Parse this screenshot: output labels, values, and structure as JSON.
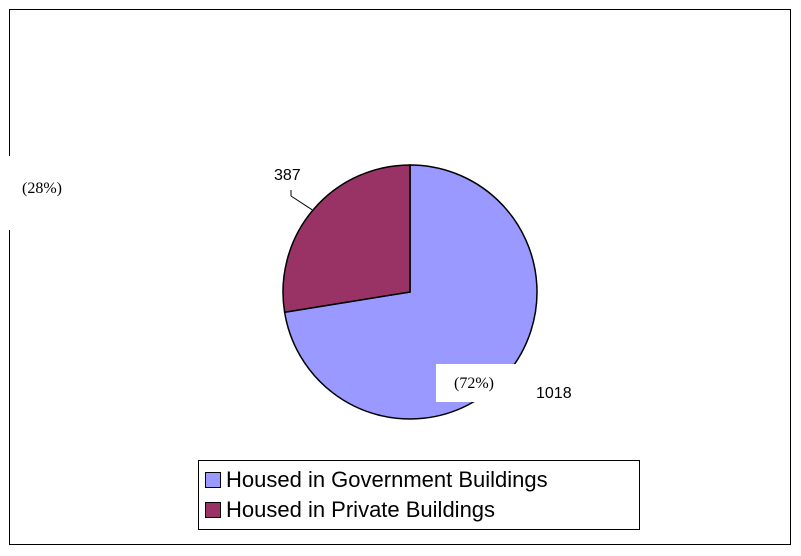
{
  "chart_data": {
    "type": "pie",
    "title": "",
    "slices": [
      {
        "label": "Housed in Government Buildings",
        "value": 1018,
        "value_label": "1018",
        "percent_label": "(72%)",
        "color": "#9999FF"
      },
      {
        "label": "Housed in Private Buildings",
        "value": 387,
        "value_label": "387",
        "percent_label": "(28%)",
        "color": "#993366"
      }
    ],
    "start_angle_deg": 0,
    "direction": "clockwise",
    "legend_position": "bottom",
    "outline_color": "#000000"
  }
}
